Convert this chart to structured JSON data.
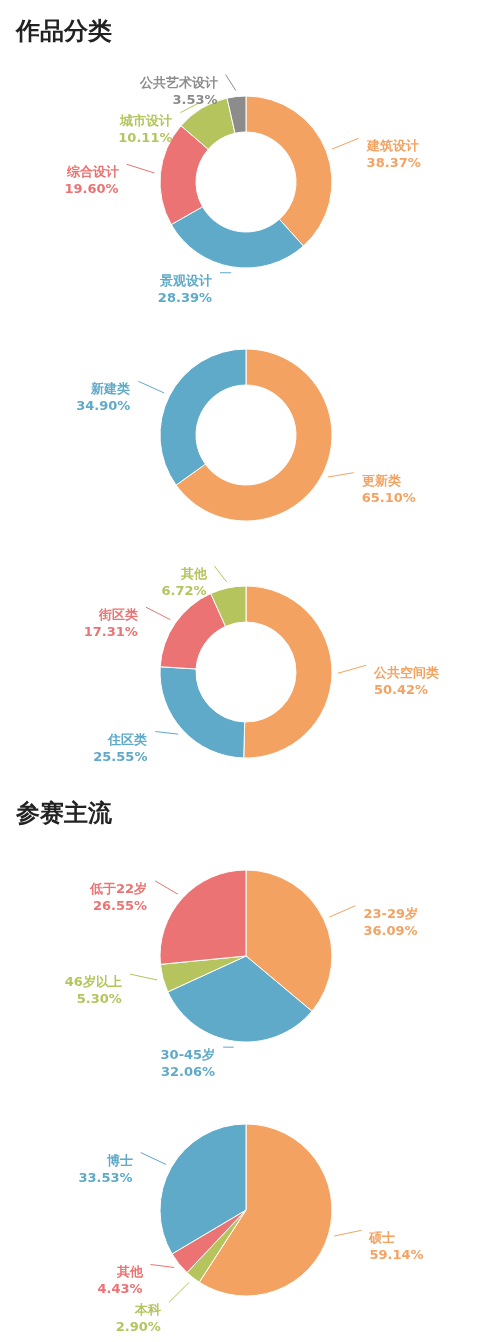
{
  "chart_data": [
    {
      "type": "donut",
      "title": "作品分类",
      "categories": [
        "建筑设计",
        "景观设计",
        "综合设计",
        "城市设计",
        "公共艺术设计"
      ],
      "values": [
        38.37,
        28.39,
        19.6,
        10.11,
        3.53
      ],
      "value_labels": [
        "38.37%",
        "28.39%",
        "19.60%",
        "10.11%",
        "3.53%"
      ],
      "colors": [
        "#f4a261",
        "#5eaac8",
        "#ec7373",
        "#b5c45c",
        "#8c8c8c"
      ]
    },
    {
      "type": "donut",
      "categories": [
        "更新类",
        "新建类"
      ],
      "values": [
        65.1,
        34.9
      ],
      "value_labels": [
        "65.10%",
        "34.90%"
      ],
      "colors": [
        "#f4a261",
        "#5eaac8"
      ]
    },
    {
      "type": "donut",
      "categories": [
        "公共空间类",
        "住区类",
        "街区类",
        "其他"
      ],
      "values": [
        50.42,
        25.55,
        17.31,
        6.72
      ],
      "value_labels": [
        "50.42%",
        "25.55%",
        "17.31%",
        "6.72%"
      ],
      "colors": [
        "#f4a261",
        "#5eaac8",
        "#ec7373",
        "#b5c45c"
      ]
    },
    {
      "type": "pie",
      "title": "参赛主流",
      "categories": [
        "23-29岁",
        "30-45岁",
        "46岁以上",
        "低于22岁"
      ],
      "values": [
        36.09,
        32.06,
        5.3,
        26.55
      ],
      "value_labels": [
        "36.09%",
        "32.06%",
        "5.30%",
        "26.55%"
      ],
      "colors": [
        "#f4a261",
        "#5eaac8",
        "#b5c45c",
        "#ec7373"
      ]
    },
    {
      "type": "pie",
      "categories": [
        "硕士",
        "本科",
        "其他",
        "博士"
      ],
      "values": [
        59.14,
        2.9,
        4.43,
        33.53
      ],
      "value_labels": [
        "59.14%",
        "2.90%",
        "4.43%",
        "33.53%"
      ],
      "colors": [
        "#f4a261",
        "#b5c45c",
        "#ec7373",
        "#5eaac8"
      ]
    }
  ]
}
